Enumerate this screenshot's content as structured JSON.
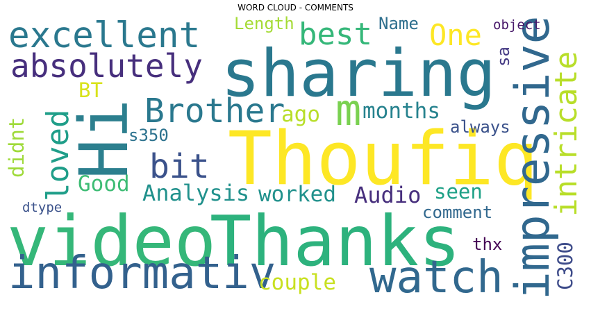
{
  "title": "WORD CLOUD - COMMENTS",
  "words": {
    "sharing": {
      "text": "sharing",
      "color": "#2a788e"
    },
    "thoufiq": {
      "text": "Thoufiq",
      "color": "#fde725"
    },
    "video": {
      "text": "video",
      "color": "#35b779"
    },
    "thanks": {
      "text": "Thanks",
      "color": "#2db27d"
    },
    "hi": {
      "text": "Hi",
      "color": "#2c7f8e"
    },
    "excellent": {
      "text": "excellent",
      "color": "#2a788e"
    },
    "absolutely": {
      "text": "absolutely",
      "color": "#472f7d"
    },
    "informativ": {
      "text": "informativ",
      "color": "#33618d"
    },
    "watch": {
      "text": "watch",
      "color": "#31688e"
    },
    "impressive": {
      "text": "impressive",
      "color": "#31688e"
    },
    "intricate": {
      "text": "intricate",
      "color": "#b8de29"
    },
    "best": {
      "text": "best",
      "color": "#35b779"
    },
    "one": {
      "text": "One",
      "color": "#fde725"
    },
    "brother": {
      "text": "Brother",
      "color": "#2a788e"
    },
    "m": {
      "text": "m",
      "color": "#7ad151"
    },
    "loved": {
      "text": "loved",
      "color": "#1f9e89"
    },
    "bit": {
      "text": "bit",
      "color": "#3b528b"
    },
    "months": {
      "text": "months",
      "color": "#26828e"
    },
    "ago": {
      "text": "ago",
      "color": "#b8de29"
    },
    "analysis": {
      "text": "Analysis",
      "color": "#21918c"
    },
    "worked": {
      "text": "worked",
      "color": "#21918c"
    },
    "audio": {
      "text": "Audio",
      "color": "#472f7d"
    },
    "good": {
      "text": "Good",
      "color": "#3dbc74"
    },
    "didnt": {
      "text": "didnt",
      "color": "#9fda3a"
    },
    "s350": {
      "text": "s350",
      "color": "#2c728e"
    },
    "bt": {
      "text": "BT",
      "color": "#d8e219"
    },
    "seen": {
      "text": "seen",
      "color": "#1fa187"
    },
    "always": {
      "text": "always",
      "color": "#3b528b"
    },
    "comment": {
      "text": "comment",
      "color": "#31688e"
    },
    "couple": {
      "text": "couple",
      "color": "#c8e020"
    },
    "thx": {
      "text": "thx",
      "color": "#440154"
    },
    "c300": {
      "text": "C300",
      "color": "#3e4c8a"
    },
    "name": {
      "text": "Name",
      "color": "#2e6f8e"
    },
    "length": {
      "text": "Length",
      "color": "#a5db36"
    },
    "object": {
      "text": "object",
      "color": "#48186a"
    },
    "sa": {
      "text": "sa",
      "color": "#443983"
    },
    "dtype": {
      "text": "dtype",
      "color": "#3b528b"
    }
  }
}
